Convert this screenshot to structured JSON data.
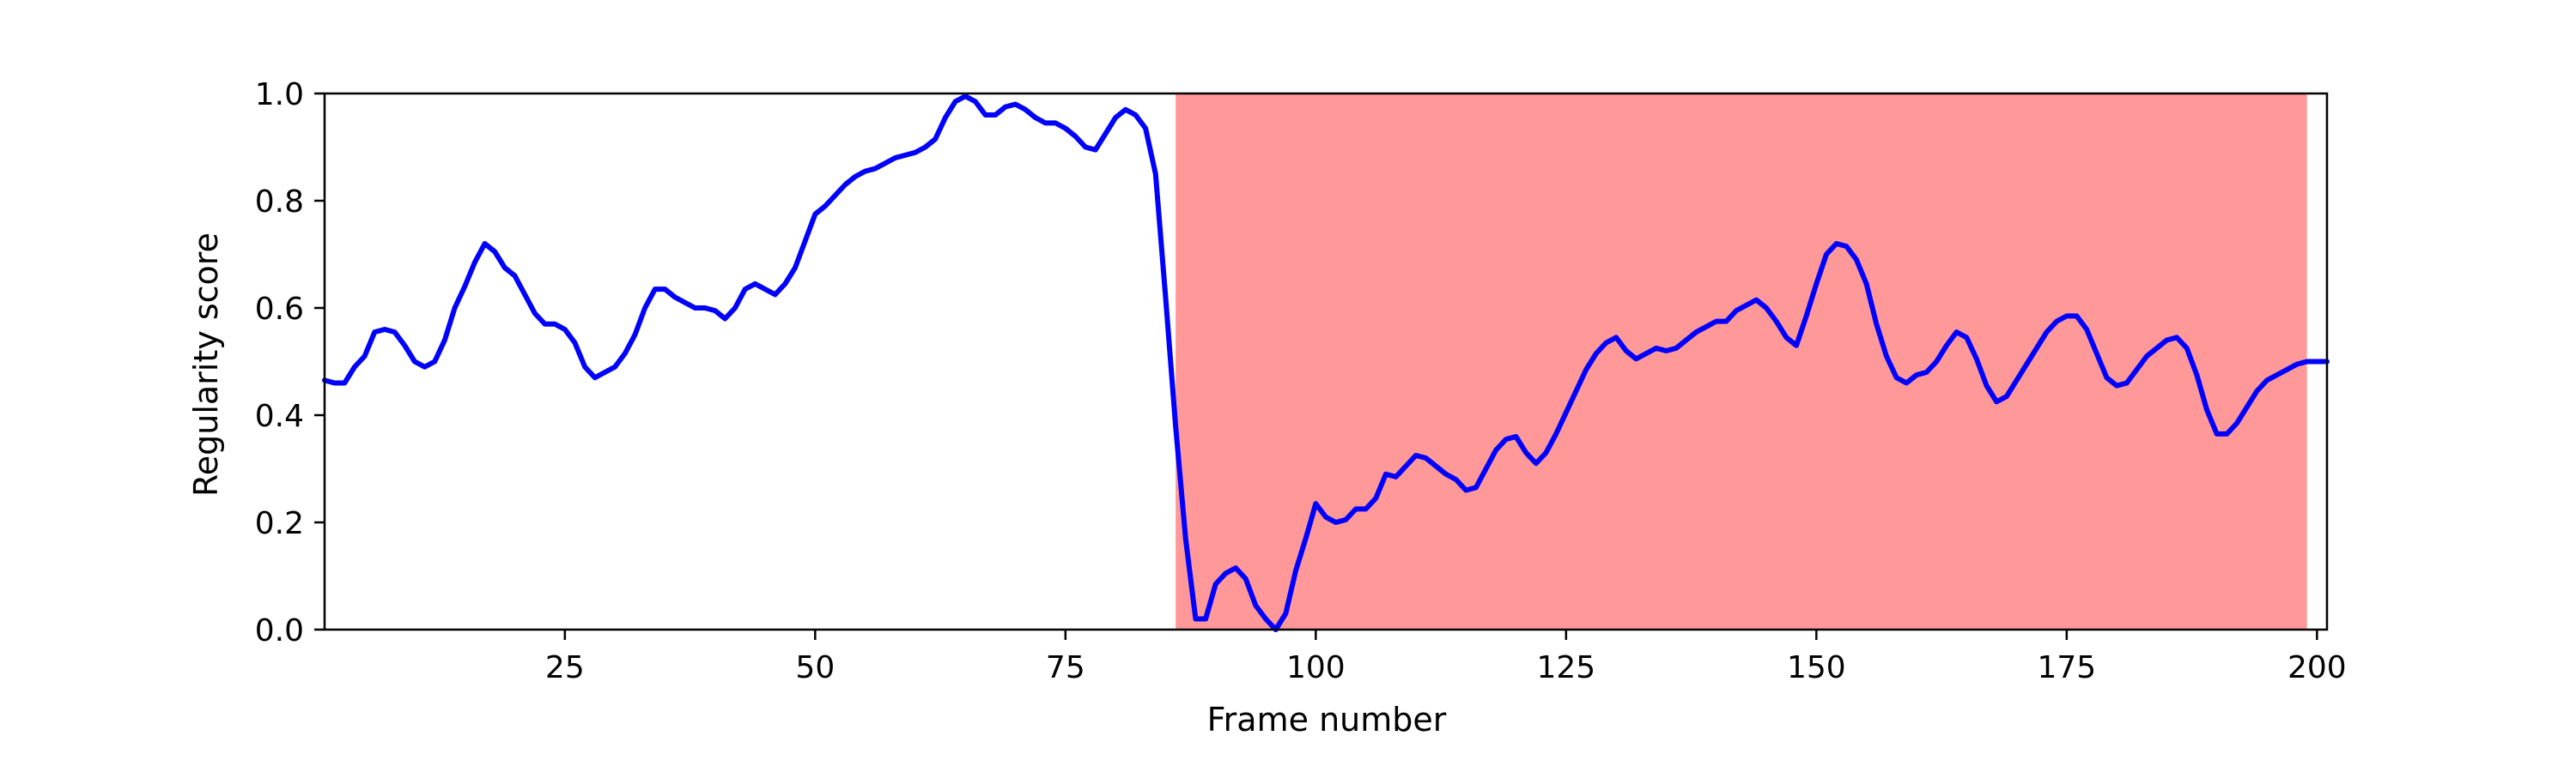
{
  "chart_data": {
    "type": "line",
    "title": "",
    "xlabel": "Frame number",
    "ylabel": "Regularity score",
    "xlim": [
      1,
      201
    ],
    "ylim": [
      0,
      1
    ],
    "xticks": [
      25,
      50,
      75,
      100,
      125,
      150,
      175,
      200
    ],
    "yticks": [
      0.0,
      0.2,
      0.4,
      0.6,
      0.8,
      1.0
    ],
    "ytick_labels": [
      "0.0",
      "0.2",
      "0.4",
      "0.6",
      "0.8",
      "1.0"
    ],
    "grid": false,
    "line_color": "#0000ff",
    "highlight_color": "#ff9999",
    "highlight_region": [
      86,
      199
    ],
    "series": [
      {
        "x": [
          1,
          2,
          3,
          4,
          5,
          6,
          7,
          8,
          9,
          10,
          11,
          12,
          13,
          14,
          15,
          16,
          17,
          18,
          19,
          20,
          21,
          22,
          23,
          24,
          25,
          26,
          27,
          28,
          29,
          30,
          31,
          32,
          33,
          34,
          35,
          36,
          37,
          38,
          39,
          40,
          41,
          42,
          43,
          44,
          45,
          46,
          47,
          48,
          49,
          50,
          51,
          52,
          53,
          54,
          55,
          56,
          57,
          58,
          59,
          60,
          61,
          62,
          63,
          64,
          65,
          66,
          67,
          68,
          69,
          70,
          71,
          72,
          73,
          74,
          75,
          76,
          77,
          78,
          79,
          80,
          81,
          82,
          83,
          84,
          85,
          86,
          87,
          88,
          89,
          90,
          91,
          92,
          93,
          94,
          95,
          96,
          97,
          98,
          99,
          100,
          101,
          102,
          103,
          104,
          105,
          106,
          107,
          108,
          109,
          110,
          111,
          112,
          113,
          114,
          115,
          116,
          117,
          118,
          119,
          120,
          121,
          122,
          123,
          124,
          125,
          126,
          127,
          128,
          129,
          130,
          131,
          132,
          133,
          134,
          135,
          136,
          137,
          138,
          139,
          140,
          141,
          142,
          143,
          144,
          145,
          146,
          147,
          148,
          149,
          150,
          151,
          152,
          153,
          154,
          155,
          156,
          157,
          158,
          159,
          160,
          161,
          162,
          163,
          164,
          165,
          166,
          167,
          168,
          169,
          170,
          171,
          172,
          173,
          174,
          175,
          176,
          177,
          178,
          179,
          180,
          181,
          182,
          183,
          184,
          185,
          186,
          187,
          188,
          189,
          190,
          191,
          192,
          193,
          194,
          195,
          196,
          197,
          198,
          199,
          200,
          201
        ],
        "y": [
          0.465,
          0.46,
          0.46,
          0.49,
          0.51,
          0.555,
          0.56,
          0.555,
          0.53,
          0.5,
          0.49,
          0.5,
          0.54,
          0.6,
          0.64,
          0.685,
          0.72,
          0.705,
          0.675,
          0.66,
          0.625,
          0.59,
          0.57,
          0.57,
          0.56,
          0.535,
          0.49,
          0.47,
          0.48,
          0.49,
          0.515,
          0.55,
          0.6,
          0.635,
          0.635,
          0.62,
          0.61,
          0.6,
          0.6,
          0.595,
          0.58,
          0.6,
          0.635,
          0.645,
          0.635,
          0.625,
          0.645,
          0.675,
          0.725,
          0.775,
          0.79,
          0.81,
          0.83,
          0.845,
          0.855,
          0.86,
          0.87,
          0.88,
          0.885,
          0.89,
          0.9,
          0.915,
          0.955,
          0.985,
          0.995,
          0.985,
          0.96,
          0.96,
          0.975,
          0.98,
          0.97,
          0.955,
          0.945,
          0.945,
          0.935,
          0.92,
          0.9,
          0.895,
          0.925,
          0.955,
          0.97,
          0.96,
          0.935,
          0.85,
          0.62,
          0.38,
          0.17,
          0.02,
          0.02,
          0.085,
          0.105,
          0.115,
          0.095,
          0.045,
          0.02,
          0.0,
          0.03,
          0.11,
          0.17,
          0.235,
          0.21,
          0.2,
          0.205,
          0.225,
          0.225,
          0.245,
          0.29,
          0.285,
          0.305,
          0.325,
          0.32,
          0.305,
          0.29,
          0.28,
          0.26,
          0.265,
          0.3,
          0.335,
          0.355,
          0.36,
          0.33,
          0.31,
          0.33,
          0.365,
          0.405,
          0.445,
          0.485,
          0.515,
          0.535,
          0.545,
          0.52,
          0.505,
          0.515,
          0.525,
          0.52,
          0.525,
          0.54,
          0.555,
          0.565,
          0.575,
          0.575,
          0.595,
          0.605,
          0.615,
          0.6,
          0.575,
          0.545,
          0.53,
          0.585,
          0.645,
          0.7,
          0.72,
          0.715,
          0.69,
          0.645,
          0.57,
          0.51,
          0.47,
          0.46,
          0.475,
          0.48,
          0.5,
          0.53,
          0.555,
          0.545,
          0.505,
          0.455,
          0.425,
          0.435,
          0.465,
          0.495,
          0.525,
          0.555,
          0.575,
          0.585,
          0.585,
          0.56,
          0.515,
          0.47,
          0.455,
          0.46,
          0.485,
          0.51,
          0.525,
          0.54,
          0.545,
          0.525,
          0.475,
          0.41,
          0.365,
          0.365,
          0.385,
          0.415,
          0.445,
          0.465,
          0.475,
          0.485,
          0.495,
          0.5,
          0.5,
          0.5
        ]
      }
    ]
  }
}
